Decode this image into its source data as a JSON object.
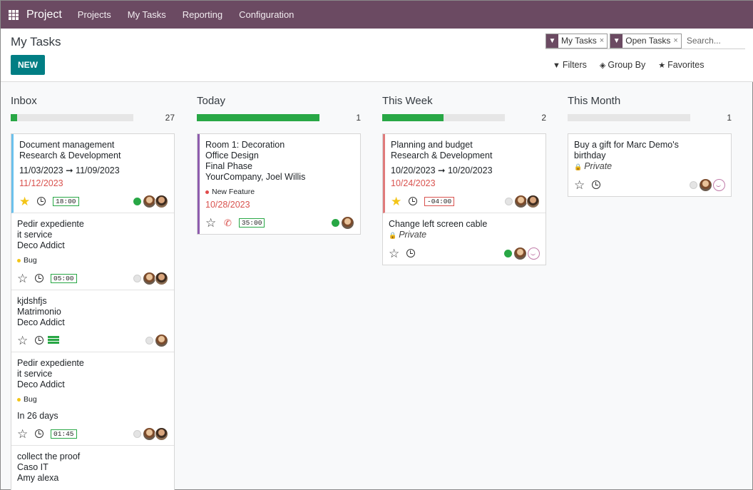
{
  "nav": {
    "brand": "Project",
    "items": [
      "Projects",
      "My Tasks",
      "Reporting",
      "Configuration"
    ]
  },
  "panel": {
    "title": "My Tasks",
    "new_label": "NEW",
    "facets": [
      "My Tasks",
      "Open Tasks"
    ],
    "search_placeholder": "Search...",
    "filters_label": "Filters",
    "groupby_label": "Group By",
    "favorites_label": "Favorites"
  },
  "columns": [
    {
      "title": "Inbox",
      "count": "27",
      "progress": 0.05,
      "cards": [
        {
          "lines": [
            "Document management",
            "Research & Development"
          ],
          "dates": "11/03/2023 ➞ 11/09/2023",
          "deadline": "11/12/2023",
          "starred": true,
          "timer": "18:00",
          "status": "green",
          "avatars": 2
        },
        {
          "lines": [
            "Pedir expediente",
            "it service",
            "Deco Addict"
          ],
          "tag": "Bug",
          "tag_color": "#f3c517",
          "starred": false,
          "timer": "05:00",
          "status": "grey",
          "avatars": 2
        },
        {
          "lines": [
            "kjdshfjs",
            "Matrimonio",
            "Deco Addict"
          ],
          "starred": false,
          "sheet": true,
          "status": "grey",
          "avatars": 1
        },
        {
          "lines": [
            "Pedir expediente",
            "it service",
            "Deco Addict"
          ],
          "tag": "Bug",
          "tag_color": "#f3c517",
          "due_in": "In 26 days",
          "starred": false,
          "timer": "01:45",
          "status": "grey",
          "avatars": 2
        },
        {
          "lines": [
            "collect the proof",
            "Caso IT",
            "Amy alexa"
          ],
          "starred": false,
          "status": "grey",
          "avatars": 1
        }
      ]
    },
    {
      "title": "Today",
      "count": "1",
      "progress": 1.0,
      "cards": [
        {
          "lines": [
            "Room 1: Decoration",
            "Office Design",
            "Final Phase",
            "YourCompany, Joel Willis"
          ],
          "tag": "New Feature",
          "tag_color": "#e04b4b",
          "deadline": "10/28/2023",
          "starred": false,
          "phone": true,
          "timer": "35:00",
          "status": "green",
          "avatars": 1
        }
      ]
    },
    {
      "title": "This Week",
      "count": "2",
      "progress": 0.5,
      "cards": [
        {
          "lines": [
            "Planning and budget",
            "Research & Development"
          ],
          "dates": "10/20/2023 ➞ 10/20/2023",
          "deadline": "10/24/2023",
          "starred": true,
          "timer": "-04:00",
          "timer_red": true,
          "status": "grey",
          "avatars": 2
        },
        {
          "lines": [
            "Change left screen cable"
          ],
          "private": "Private",
          "starred": false,
          "status": "green",
          "avatars": 1,
          "smiley": true
        }
      ]
    },
    {
      "title": "This Month",
      "count": "1",
      "progress": 0,
      "cards": [
        {
          "lines": [
            "Buy a gift for Marc Demo's",
            "birthday"
          ],
          "private": "Private",
          "starred": false,
          "status": "grey",
          "avatars": 1,
          "smiley": true
        }
      ]
    }
  ]
}
